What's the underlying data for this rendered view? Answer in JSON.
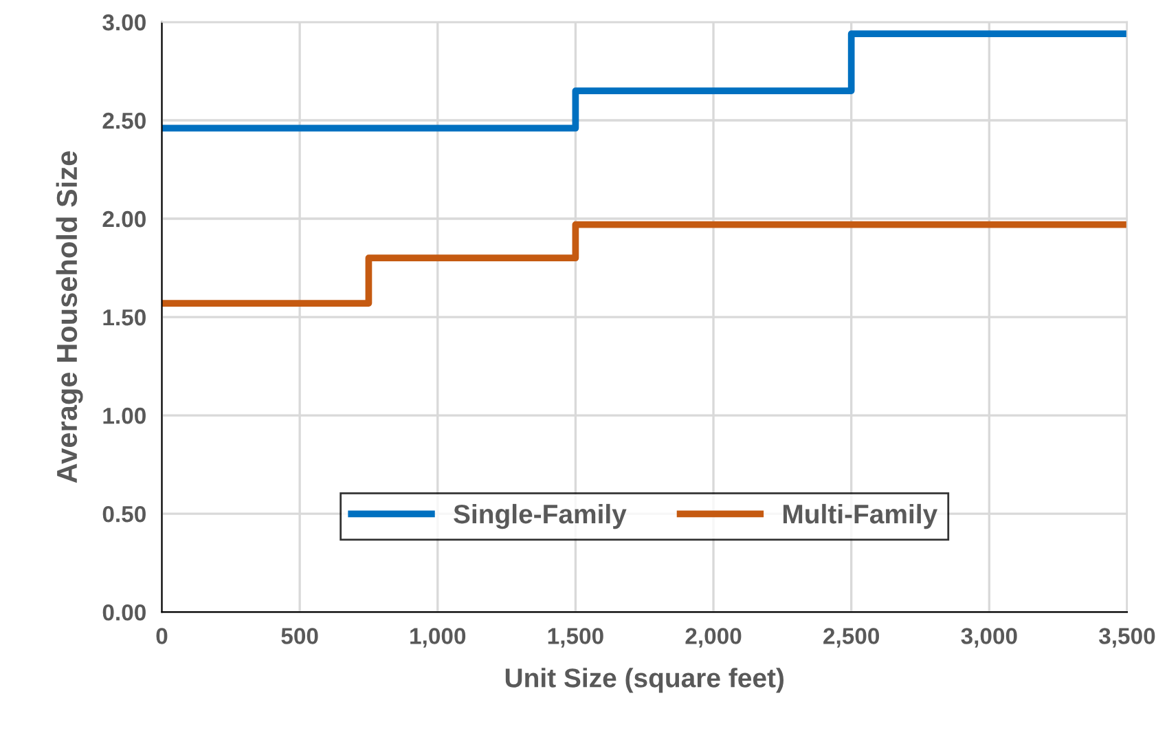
{
  "chart_data": {
    "type": "step",
    "xlabel": "Unit Size (square feet)",
    "ylabel": "Average Household Size",
    "series": [
      {
        "name": "Single-Family",
        "color": "#0070c0",
        "x": [
          0,
          1500,
          2500,
          3500
        ],
        "values": [
          2.46,
          2.65,
          2.94,
          2.94
        ]
      },
      {
        "name": "Multi-Family",
        "color": "#c55a11",
        "x": [
          0,
          750,
          1500,
          3500
        ],
        "values": [
          1.57,
          1.8,
          1.97,
          1.97
        ]
      }
    ],
    "xlim": [
      0,
      3500
    ],
    "xticks": [
      {
        "value": 0,
        "label": "0"
      },
      {
        "value": 500,
        "label": "500"
      },
      {
        "value": 1000,
        "label": "1,000"
      },
      {
        "value": 1500,
        "label": "1,500"
      },
      {
        "value": 2000,
        "label": "2,000"
      },
      {
        "value": 2500,
        "label": "2,500"
      },
      {
        "value": 3000,
        "label": "3,000"
      },
      {
        "value": 3500,
        "label": "3,500"
      }
    ],
    "ylim": [
      0,
      3
    ],
    "yticks": [
      {
        "value": 0,
        "label": "0.00"
      },
      {
        "value": 0.5,
        "label": "0.50"
      },
      {
        "value": 1,
        "label": "1.00"
      },
      {
        "value": 1.5,
        "label": "1.50"
      },
      {
        "value": 2,
        "label": "2.00"
      },
      {
        "value": 2.5,
        "label": "2.50"
      },
      {
        "value": 3,
        "label": "3.00"
      }
    ],
    "grid": true,
    "legend": "bottom",
    "marker": "none",
    "line_style": "solid"
  }
}
